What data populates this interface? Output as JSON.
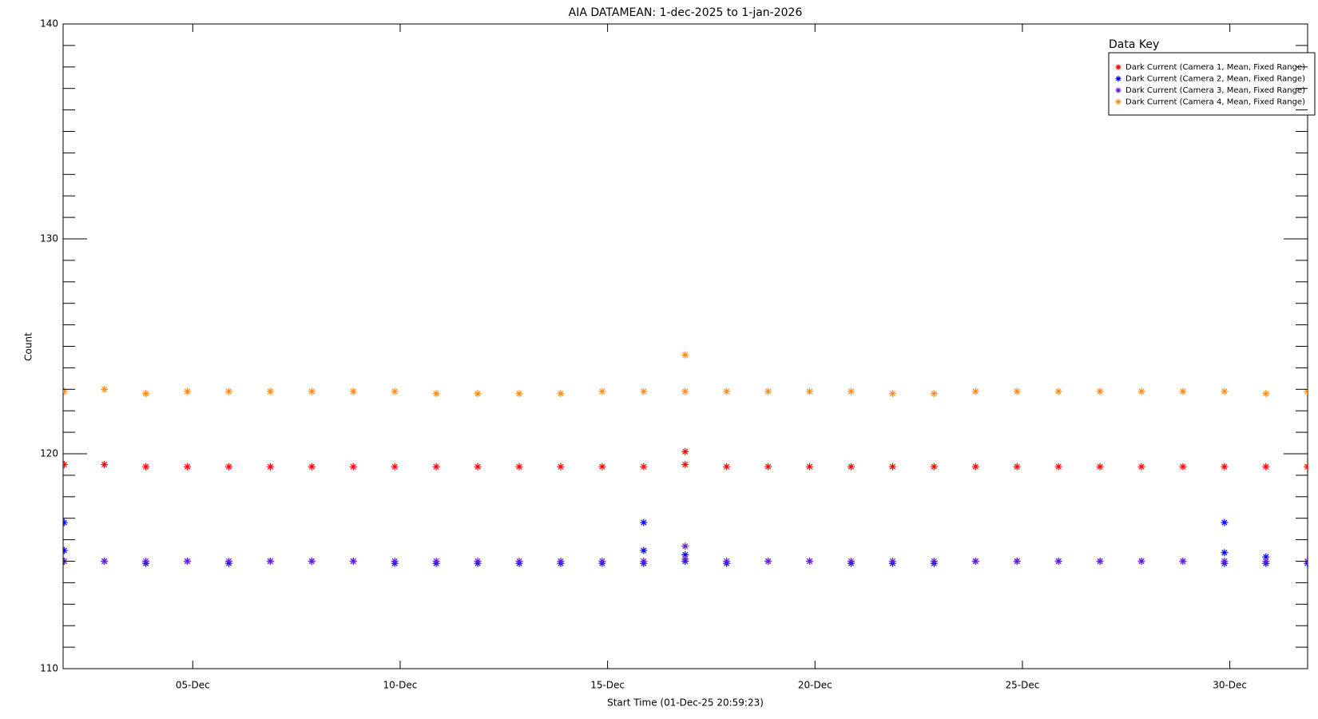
{
  "chart_data": {
    "type": "scatter",
    "title": "AIA DATAMEAN: 1-dec-2025 to 1-jan-2026",
    "xlabel": "Start Time (01-Dec-25 20:59:23)",
    "ylabel": "Count",
    "legend_title": "Data Key",
    "legend": "upper right",
    "xlim": [
      1.875,
      31.875
    ],
    "xticks": [
      {
        "value": 5,
        "label": "05-Dec"
      },
      {
        "value": 10,
        "label": "10-Dec"
      },
      {
        "value": 15,
        "label": "15-Dec"
      },
      {
        "value": 20,
        "label": "20-Dec"
      },
      {
        "value": 25,
        "label": "25-Dec"
      },
      {
        "value": 30,
        "label": "30-Dec"
      }
    ],
    "ylim": [
      110,
      140
    ],
    "yticks": [
      110,
      120,
      130,
      140
    ],
    "yminorticks": [
      111,
      112,
      113,
      114,
      115,
      116,
      117,
      118,
      119,
      121,
      122,
      123,
      124,
      125,
      126,
      127,
      128,
      129,
      131,
      132,
      133,
      134,
      135,
      136,
      137,
      138,
      139
    ],
    "series": [
      {
        "name": "Dark Current (Camera 1, Mean, Fixed Range)",
        "color": "#ff0000",
        "x": [
          1.9,
          2.87,
          3.87,
          4.87,
          5.87,
          6.87,
          7.87,
          8.87,
          9.87,
          10.87,
          11.87,
          12.87,
          13.87,
          14.87,
          15.87,
          16.87,
          17.87,
          18.87,
          19.87,
          20.87,
          21.87,
          22.87,
          23.87,
          24.87,
          25.87,
          26.87,
          27.87,
          28.87,
          29.87,
          30.87,
          31.87,
          16.87
        ],
        "values": [
          119.5,
          119.5,
          119.4,
          119.4,
          119.4,
          119.4,
          119.4,
          119.4,
          119.4,
          119.4,
          119.4,
          119.4,
          119.4,
          119.4,
          119.4,
          119.5,
          119.4,
          119.4,
          119.4,
          119.4,
          119.4,
          119.4,
          119.4,
          119.4,
          119.4,
          119.4,
          119.4,
          119.4,
          119.4,
          119.4,
          119.4,
          120.1
        ]
      },
      {
        "name": "Dark Current (Camera 2, Mean, Fixed Range)",
        "color": "#0000ff",
        "x": [
          1.9,
          2.87,
          3.87,
          4.87,
          5.87,
          6.87,
          7.87,
          8.87,
          9.87,
          10.87,
          11.87,
          12.87,
          13.87,
          14.87,
          15.87,
          16.87,
          17.87,
          18.87,
          19.87,
          20.87,
          21.87,
          22.87,
          23.87,
          24.87,
          25.87,
          26.87,
          27.87,
          28.87,
          29.87,
          30.87,
          31.87,
          1.9,
          1.9,
          15.87,
          15.87,
          16.87,
          29.87,
          29.87,
          30.87
        ],
        "values": [
          115.0,
          115.0,
          114.9,
          115.0,
          114.9,
          115.0,
          115.0,
          115.0,
          114.9,
          114.9,
          114.9,
          114.9,
          114.9,
          114.9,
          114.9,
          115.0,
          114.9,
          115.0,
          115.0,
          114.9,
          114.9,
          114.9,
          115.0,
          115.0,
          115.0,
          115.0,
          115.0,
          115.0,
          114.9,
          114.9,
          114.9,
          116.8,
          115.5,
          116.8,
          115.5,
          115.3,
          116.8,
          115.4,
          115.2
        ]
      },
      {
        "name": "Dark Current (Camera 3, Mean, Fixed Range)",
        "color": "#6a1ed2",
        "x": [
          1.9,
          2.87,
          3.87,
          4.87,
          5.87,
          6.87,
          7.87,
          8.87,
          9.87,
          10.87,
          11.87,
          12.87,
          13.87,
          14.87,
          15.87,
          16.87,
          17.87,
          18.87,
          19.87,
          20.87,
          21.87,
          22.87,
          23.87,
          24.87,
          25.87,
          26.87,
          27.87,
          28.87,
          29.87,
          30.87,
          31.87,
          16.87
        ],
        "values": [
          115.0,
          115.0,
          115.0,
          115.0,
          115.0,
          115.0,
          115.0,
          115.0,
          115.0,
          115.0,
          115.0,
          115.0,
          115.0,
          115.0,
          115.0,
          115.1,
          115.0,
          115.0,
          115.0,
          115.0,
          115.0,
          115.0,
          115.0,
          115.0,
          115.0,
          115.0,
          115.0,
          115.0,
          115.0,
          115.0,
          115.0,
          115.7
        ]
      },
      {
        "name": "Dark Current (Camera 4, Mean, Fixed Range)",
        "color": "#ff8c1a",
        "x": [
          1.9,
          2.87,
          3.87,
          4.87,
          5.87,
          6.87,
          7.87,
          8.87,
          9.87,
          10.87,
          11.87,
          12.87,
          13.87,
          14.87,
          15.87,
          16.87,
          17.87,
          18.87,
          19.87,
          20.87,
          21.87,
          22.87,
          23.87,
          24.87,
          25.87,
          26.87,
          27.87,
          28.87,
          29.87,
          30.87,
          31.87,
          16.87
        ],
        "values": [
          122.9,
          123.0,
          122.8,
          122.9,
          122.9,
          122.9,
          122.9,
          122.9,
          122.9,
          122.8,
          122.8,
          122.8,
          122.8,
          122.9,
          122.9,
          122.9,
          122.9,
          122.9,
          122.9,
          122.9,
          122.8,
          122.8,
          122.9,
          122.9,
          122.9,
          122.9,
          122.9,
          122.9,
          122.9,
          122.8,
          122.9,
          124.6
        ]
      }
    ]
  }
}
